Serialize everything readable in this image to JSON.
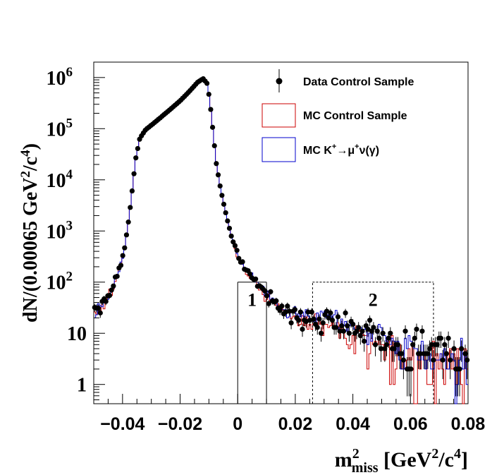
{
  "chart_data": {
    "type": "histogram",
    "title": "",
    "xlabel": "m²_miss [GeV²/c⁴]",
    "ylabel": "dN/(0.00065 GeV²/c⁴)",
    "xlabel_parts": {
      "m": "m",
      "sup": "2",
      "sub": "miss",
      "unit_open": " [GeV",
      "unit_sup1": "2",
      "unit_mid": "/c",
      "unit_sup2": "4",
      "unit_close": "]"
    },
    "ylabel_parts": {
      "pre": "dN/(0.00065 GeV",
      "sup1": "2",
      "mid": "/c",
      "sup2": "4",
      "post": ")"
    },
    "xlim": [
      -0.05,
      0.08
    ],
    "ylim": [
      0.42,
      2000000
    ],
    "yscale": "log",
    "x_ticks": [
      -0.04,
      -0.02,
      0,
      0.02,
      0.04,
      0.06,
      0.08
    ],
    "x_tick_labels": [
      "−0.04",
      "−0.02",
      "0",
      "0.02",
      "0.04",
      "0.06",
      "0.08"
    ],
    "y_ticks": [
      1,
      10,
      100,
      1000,
      10000,
      100000,
      1000000
    ],
    "y_tick_labels": [
      {
        "base": "1",
        "exp": ""
      },
      {
        "base": "10",
        "exp": ""
      },
      {
        "base": "10",
        "exp": "2"
      },
      {
        "base": "10",
        "exp": "3"
      },
      {
        "base": "10",
        "exp": "4"
      },
      {
        "base": "10",
        "exp": "5"
      },
      {
        "base": "10",
        "exp": "6"
      }
    ],
    "shape_knots": [
      [
        -0.05,
        24
      ],
      [
        -0.048,
        28
      ],
      [
        -0.046,
        40
      ],
      [
        -0.044,
        70
      ],
      [
        -0.042,
        120
      ],
      [
        -0.04,
        300
      ],
      [
        -0.0385,
        900
      ],
      [
        -0.037,
        4000
      ],
      [
        -0.0355,
        25000
      ],
      [
        -0.034,
        65000
      ],
      [
        -0.032,
        95000
      ],
      [
        -0.029,
        130000
      ],
      [
        -0.026,
        180000
      ],
      [
        -0.023,
        250000
      ],
      [
        -0.02,
        350000
      ],
      [
        -0.017,
        520000
      ],
      [
        -0.014,
        800000
      ],
      [
        -0.012,
        950000
      ],
      [
        -0.0105,
        750000
      ],
      [
        -0.0095,
        280000
      ],
      [
        -0.0085,
        80000
      ],
      [
        -0.0075,
        22000
      ],
      [
        -0.006,
        7000
      ],
      [
        -0.004,
        2000
      ],
      [
        -0.002,
        700
      ],
      [
        0.0,
        330
      ],
      [
        0.002,
        200
      ],
      [
        0.005,
        130
      ],
      [
        0.008,
        75
      ],
      [
        0.011,
        48
      ],
      [
        0.015,
        32
      ],
      [
        0.02,
        23
      ],
      [
        0.025,
        20
      ],
      [
        0.03,
        18
      ],
      [
        0.035,
        16
      ],
      [
        0.04,
        12
      ],
      [
        0.045,
        10
      ],
      [
        0.05,
        8
      ],
      [
        0.055,
        6
      ],
      [
        0.06,
        5
      ],
      [
        0.065,
        4.5
      ],
      [
        0.07,
        4
      ],
      [
        0.075,
        3.5
      ],
      [
        0.08,
        3
      ]
    ],
    "binning": {
      "start": -0.05,
      "end": 0.08,
      "width": 0.00065
    },
    "series": [
      {
        "name": "Data Control Sample",
        "style": "markers-with-error-bars",
        "color": "#000000"
      },
      {
        "name": "MC Control Sample",
        "style": "step-histogram",
        "color": "#cc0000"
      },
      {
        "name": "MC K⁺→μ⁺ν(γ)",
        "style": "step-histogram",
        "color": "#0000cc"
      }
    ],
    "legend": {
      "position": "top-right",
      "entries": [
        {
          "label": "Data Control Sample",
          "marker": "point"
        },
        {
          "label": "MC Control Sample",
          "marker": "box",
          "color": "#cc0000"
        },
        {
          "label": "MC K⁺→μ⁺ν(γ)",
          "marker": "box",
          "color": "#0000cc",
          "parts": {
            "a": "MC K",
            "s1": "+",
            "b": "→μ",
            "s2": "+",
            "c": "ν(γ)"
          }
        }
      ]
    },
    "regions": [
      {
        "label": "1",
        "x_range": [
          0.0,
          0.01
        ],
        "top_value": 100,
        "style": "solid"
      },
      {
        "label": "2",
        "x_range": [
          0.026,
          0.068
        ],
        "top_value": 100,
        "style": "dashed"
      }
    ]
  }
}
